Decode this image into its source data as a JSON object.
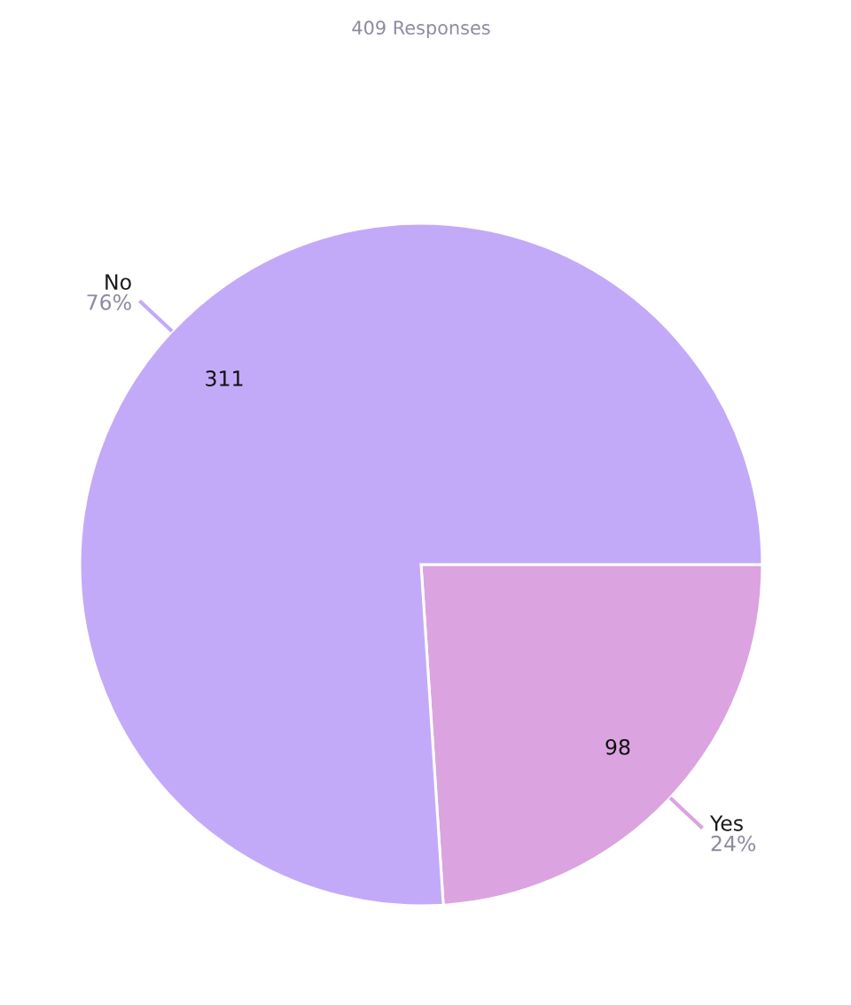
{
  "chart_data": {
    "type": "pie",
    "title": "409 Responses",
    "categories": [
      "Yes",
      "No"
    ],
    "values": [
      98,
      311
    ],
    "colors": [
      "#dba3e0",
      "#c3aaf8"
    ],
    "data_labels": true,
    "annotations": [
      "24%",
      "76%"
    ]
  }
}
